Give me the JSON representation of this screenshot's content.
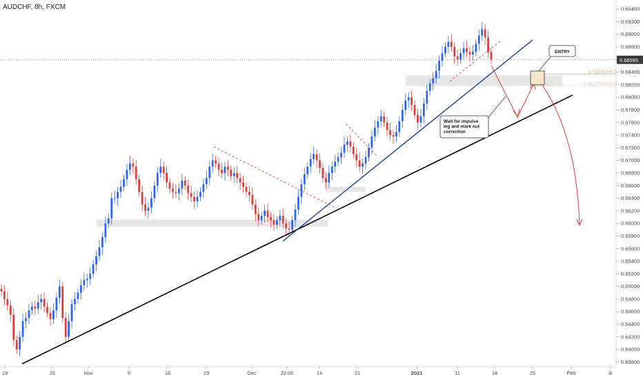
{
  "chart_data": {
    "type": "candlestick",
    "title": "AUDCHF, 8h, FXCM",
    "ylim": [
      0.6375,
      0.695
    ],
    "y_ticks": [
      "0.63800",
      "0.64000",
      "0.64200",
      "0.64400",
      "0.64600",
      "0.64800",
      "0.65000",
      "0.65200",
      "0.65400",
      "0.65600",
      "0.65800",
      "0.66000",
      "0.66200",
      "0.66400",
      "0.66600",
      "0.66800",
      "0.67000",
      "0.67200",
      "0.67400",
      "0.67600",
      "0.67800",
      "0.68000",
      "0.68200",
      "0.68400",
      "0.68600",
      "0.68800",
      "0.69000",
      "0.69200",
      "0.69400"
    ],
    "x_ticks": [
      "19",
      "26",
      "Nov",
      "9",
      "16",
      "23",
      "Dec",
      "22:00",
      "14",
      "21",
      "2021",
      "11",
      "18",
      "25",
      "Feb",
      "8"
    ],
    "current_price": "0.68595",
    "colors": {
      "up": "#2962ff",
      "down": "#e53935",
      "trend_main": "#000000",
      "trend_inner": "#1a3f9c",
      "projection": "#e53935",
      "fib_05": "#f4a261",
      "fib_0382": "#f7c59a",
      "zone": "#e6e6e6",
      "entry_box": "#f5e6c8"
    },
    "candle_series": [
      0.6492,
      0.648,
      0.647,
      0.6455,
      0.6415,
      0.64,
      0.642,
      0.6445,
      0.645,
      0.6462,
      0.6468,
      0.6465,
      0.6475,
      0.648,
      0.6468,
      0.6458,
      0.6448,
      0.6462,
      0.6482,
      0.65,
      0.645,
      0.642,
      0.6445,
      0.6472,
      0.648,
      0.649,
      0.6502,
      0.651,
      0.6512,
      0.652,
      0.6535,
      0.6548,
      0.6562,
      0.6578,
      0.66,
      0.6608,
      0.664,
      0.664,
      0.665,
      0.6658,
      0.667,
      0.6685,
      0.6695,
      0.669,
      0.667,
      0.665,
      0.663,
      0.662,
      0.6625,
      0.664,
      0.666,
      0.668,
      0.669,
      0.668,
      0.6665,
      0.6655,
      0.665,
      0.6648,
      0.6655,
      0.6668,
      0.666,
      0.6648,
      0.6642,
      0.6635,
      0.6642,
      0.665,
      0.6662,
      0.6672,
      0.669,
      0.67,
      0.6695,
      0.6685,
      0.668,
      0.669,
      0.6685,
      0.6675,
      0.668,
      0.6672,
      0.6665,
      0.6658,
      0.665,
      0.6645,
      0.663,
      0.6615,
      0.6605,
      0.6612,
      0.662,
      0.661,
      0.6605,
      0.6598,
      0.6605,
      0.6612,
      0.66,
      0.6592,
      0.659,
      0.6605,
      0.6622,
      0.6642,
      0.6662,
      0.6678,
      0.669,
      0.6702,
      0.671,
      0.67,
      0.6688,
      0.6672,
      0.6665,
      0.668,
      0.669,
      0.6698,
      0.6705,
      0.6712,
      0.6725,
      0.673,
      0.6722,
      0.671,
      0.67,
      0.669,
      0.6695,
      0.6705,
      0.672,
      0.6738,
      0.6752,
      0.6762,
      0.677,
      0.676,
      0.6748,
      0.674,
      0.6738,
      0.6745,
      0.6762,
      0.678,
      0.6795,
      0.68,
      0.6788,
      0.6772,
      0.676,
      0.677,
      0.679,
      0.681,
      0.6822,
      0.683,
      0.6842,
      0.6858,
      0.687,
      0.688,
      0.6888,
      0.688,
      0.6865,
      0.686,
      0.687,
      0.6878,
      0.6872,
      0.6868,
      0.6872,
      0.6885,
      0.6898,
      0.6908,
      0.6895,
      0.6872,
      0.686
    ],
    "levels": [
      {
        "label": "0.5(0.68367)",
        "value": 0.68367
      },
      {
        "label": "0.382(0.68180)",
        "value": 0.6818
      }
    ],
    "zones": [
      {
        "from": 0.6595,
        "to": 0.6606
      },
      {
        "from": 0.665,
        "to": 0.6658
      },
      {
        "from": 0.6818,
        "to": 0.6835
      }
    ],
    "annotations": {
      "entry": "ENTRY",
      "note": [
        "Wait for impulse",
        "leg and mark out",
        "correction"
      ]
    }
  }
}
